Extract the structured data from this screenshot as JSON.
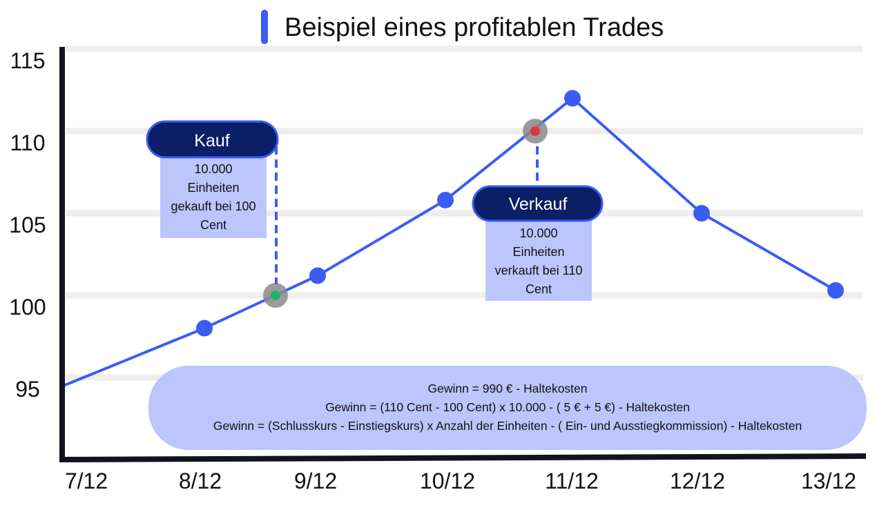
{
  "chart_data": {
    "type": "line",
    "title": "Beispiel eines profitablen Trades",
    "categories": [
      "7/12",
      "8/12",
      "9/12",
      "10/12",
      "11/12",
      "12/12",
      "13/12"
    ],
    "values": [
      94.5,
      98,
      101.2,
      105.8,
      112,
      105,
      100.3
    ],
    "yticks": [
      95,
      100,
      105,
      110,
      115
    ],
    "ylim": [
      92,
      116
    ],
    "grid": true,
    "colors": {
      "line": "#3a5cf5",
      "buy": "#1db56a",
      "sell": "#d93a3a",
      "label_bg": "#0b1f66",
      "box_bg": "#bcc6fc",
      "axis": "#11131f"
    },
    "annotations": {
      "buy": {
        "label": "Kauf",
        "text": [
          "10.000",
          "Einheiten",
          "gekauft bei 100",
          "Cent"
        ],
        "value": 100,
        "between": [
          "8/12",
          "9/12"
        ]
      },
      "sell": {
        "label": "Verkauf",
        "text": [
          "10.000",
          "Einheiten",
          "verkauft bei 110",
          "Cent"
        ],
        "value": 110,
        "between": [
          "10/12",
          "11/12"
        ]
      },
      "formula": [
        "Gewinn = 990 € - Haltekosten",
        "Gewinn = (110 Cent - 100 Cent) x 10.000 - ( 5 € + 5 €) - Haltekosten",
        "Gewinn = (Schlusskurs - Einstiegskurs) x Anzahl der Einheiten - ( Ein- und Ausstiegkommission) - Haltekosten"
      ]
    }
  }
}
